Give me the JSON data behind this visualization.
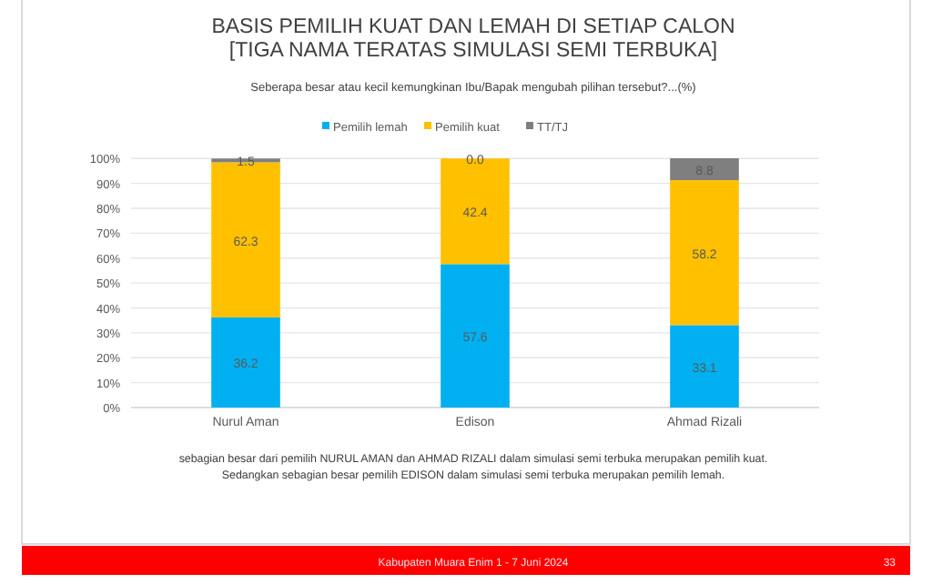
{
  "chart_data": {
    "type": "bar",
    "title": "BASIS PEMILIH KUAT DAN LEMAH DI SETIAP CALON\n[TIGA NAMA TERATAS SIMULASI SEMI TERBUKA]",
    "subtitle": "Seberapa besar atau kecil kemungkinan Ibu/Bapak mengubah pilihan tersebut?...(%)",
    "categories": [
      "Nurul Aman",
      "Edison",
      "Ahmad Rizali"
    ],
    "series": [
      {
        "name": "Pemilih lemah",
        "color": "#00b0f0",
        "values": [
          36.2,
          57.6,
          33.1
        ],
        "value_labels": [
          "36.2",
          "57.6",
          "33.1"
        ]
      },
      {
        "name": "Pemilih kuat",
        "color": "#ffc000",
        "values": [
          62.3,
          42.4,
          58.2
        ],
        "value_labels": [
          "62.3",
          "42.4",
          "58.2"
        ]
      },
      {
        "name": "TT/TJ",
        "color": "#7f7f7f",
        "values": [
          1.5,
          0.0,
          8.8
        ],
        "value_labels": [
          "1.5",
          "0.0",
          "8.8"
        ]
      }
    ],
    "stacked": true,
    "legend": "top",
    "grid": "y",
    "ylim": [
      0,
      100.1
    ],
    "yticks": [
      {
        "value": 0,
        "label": "0%"
      },
      {
        "value": 10,
        "label": "10%"
      },
      {
        "value": 20,
        "label": "20%"
      },
      {
        "value": 30,
        "label": "30%"
      },
      {
        "value": 40,
        "label": "40%"
      },
      {
        "value": 50,
        "label": "50%"
      },
      {
        "value": 60,
        "label": "60%"
      },
      {
        "value": 70,
        "label": "70%"
      },
      {
        "value": 80,
        "label": "80%"
      },
      {
        "value": 90,
        "label": "90%"
      },
      {
        "value": 100,
        "label": "100%"
      }
    ],
    "annotations": [
      "sebagian besar dari pemilih NURUL AMAN dan AHMAD RIZALI dalam simulasi semi terbuka merupakan pemilih kuat.\nSedangkan sebagian besar pemilih EDISON dalam simulasi semi terbuka merupakan pemilih lemah.",
      "Kabupaten Muara Enim 1 - 7 Juni 2024",
      "33"
    ]
  }
}
